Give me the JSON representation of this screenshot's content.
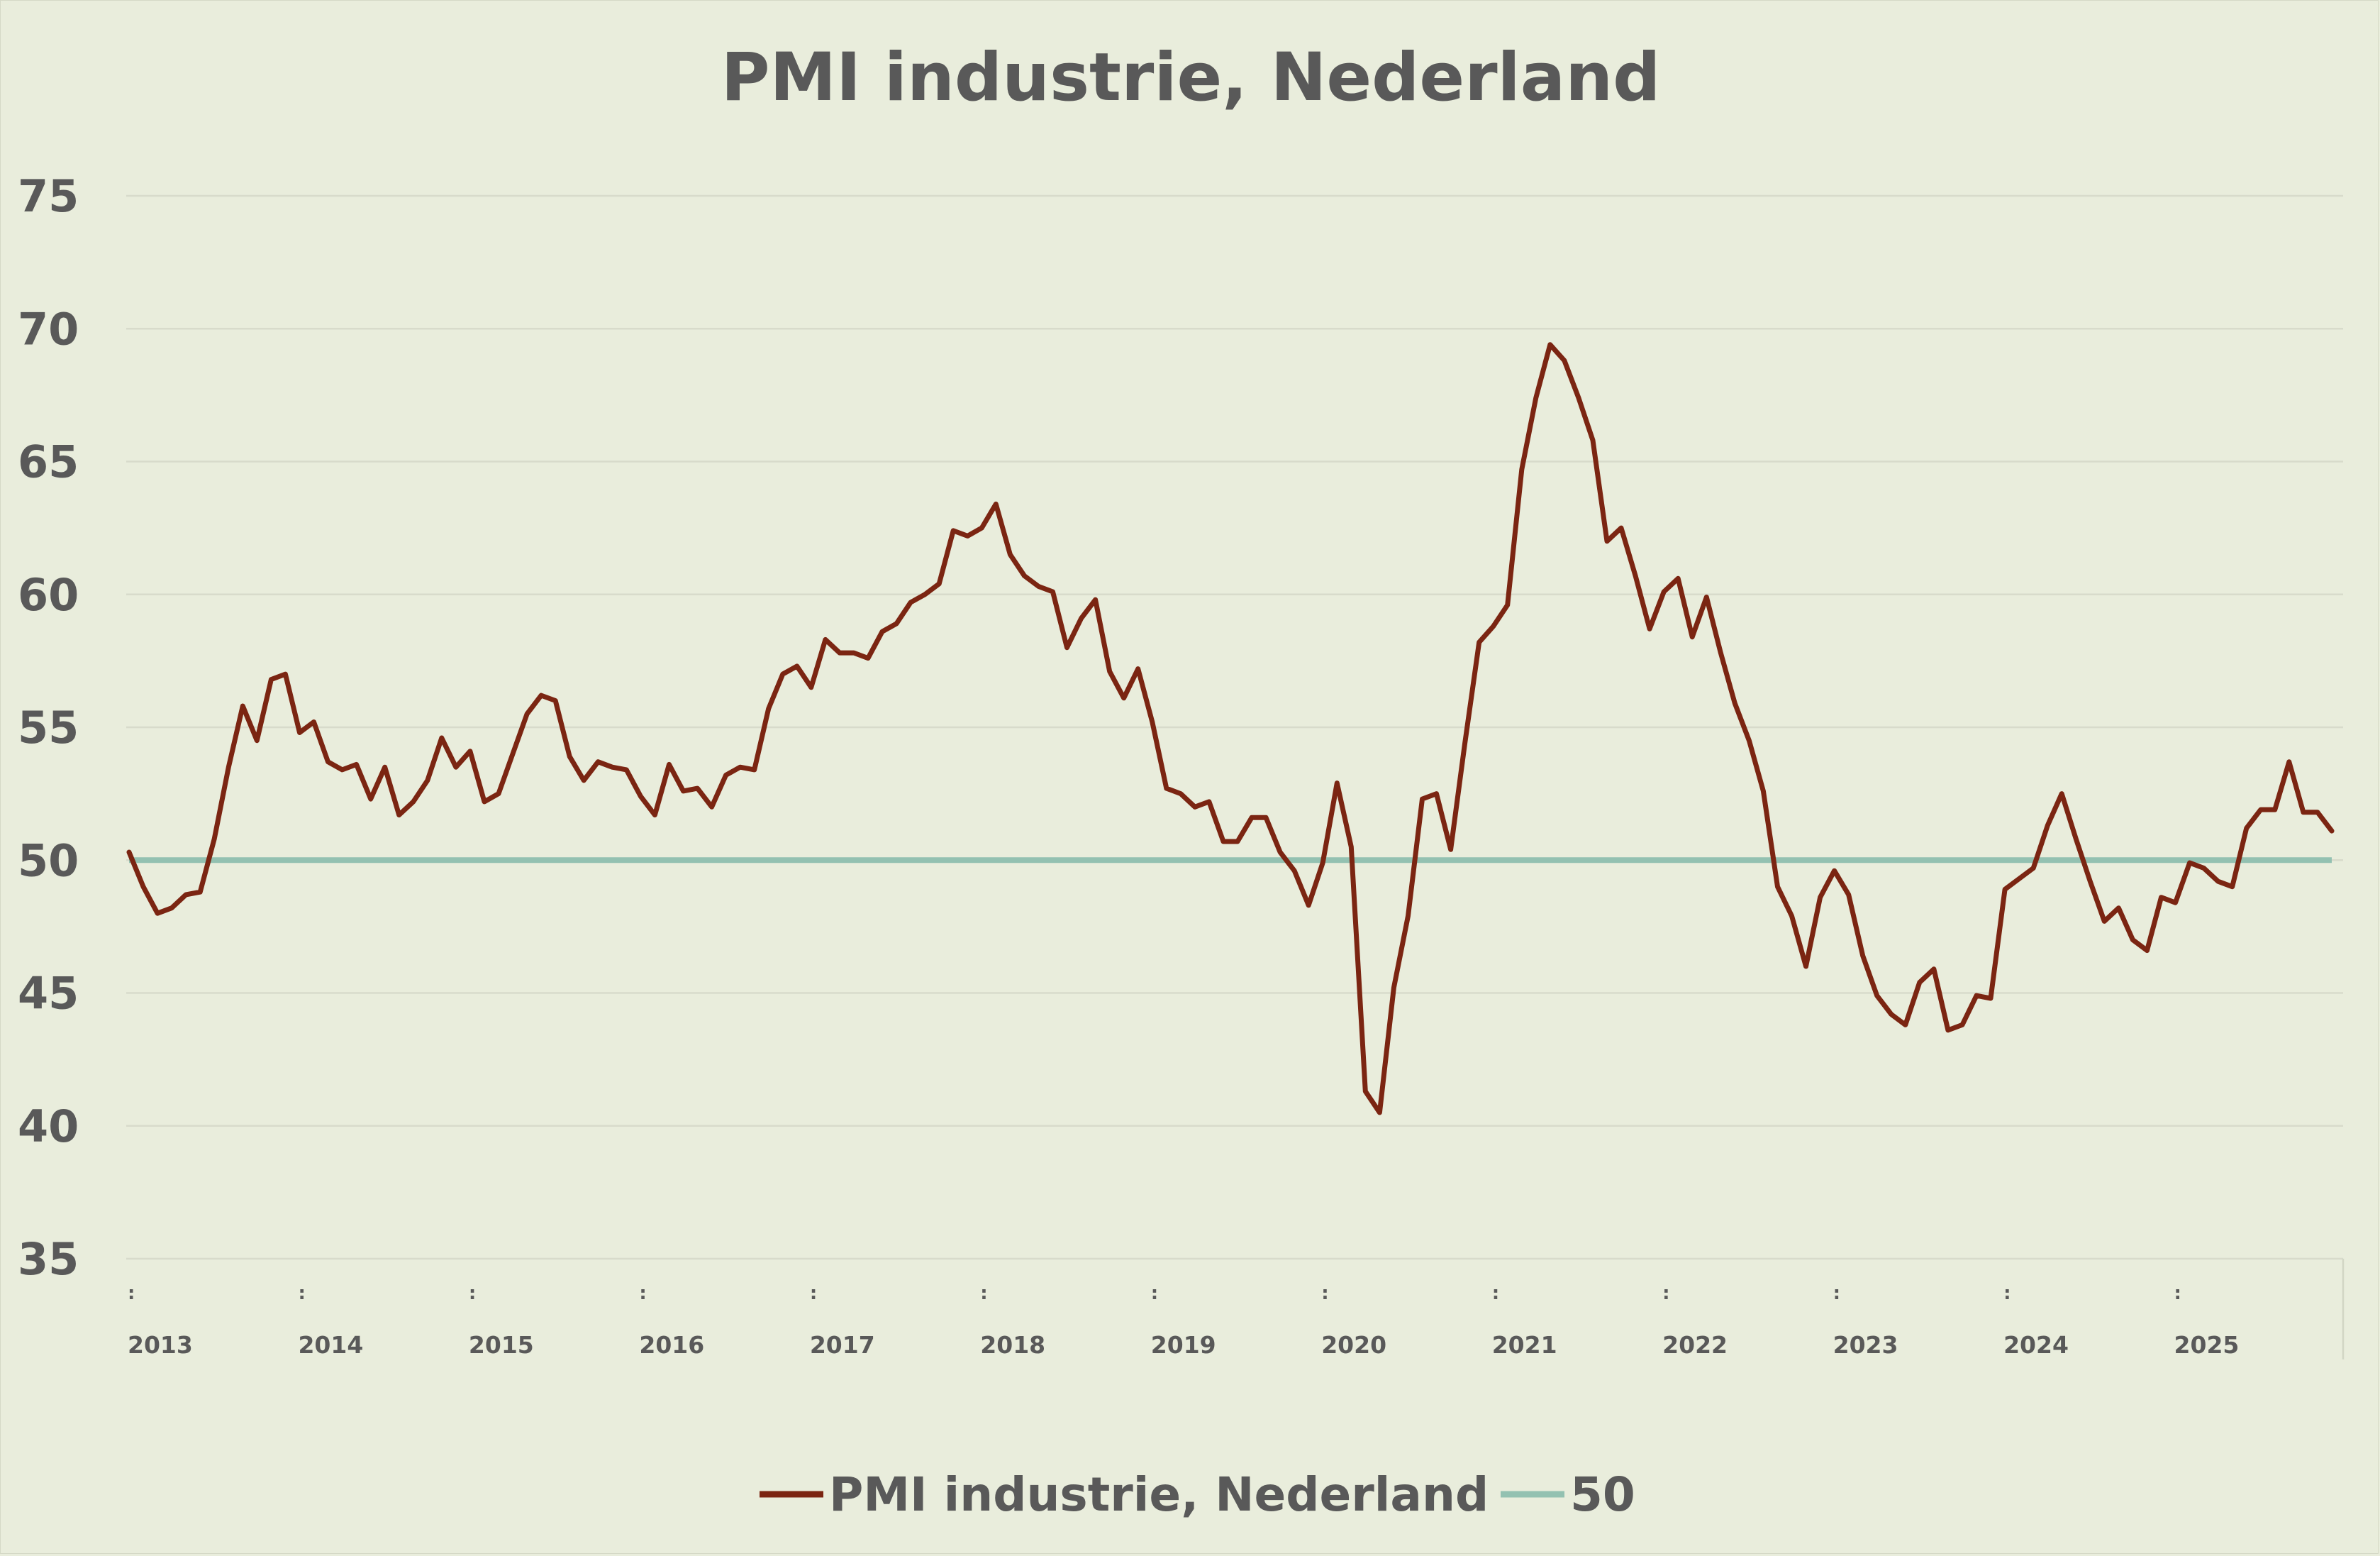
{
  "chart_data": {
    "type": "line",
    "title": "PMI industrie, Nederland",
    "xlabel": "",
    "ylabel": "",
    "ylim": [
      35,
      75
    ],
    "yticks": [
      "75",
      "70",
      "65",
      "60",
      "55",
      "50",
      "45",
      "40",
      "35"
    ],
    "x_tick_labels": [
      "2013",
      "2014",
      "2015",
      "2016",
      "2017",
      "2018",
      "2019",
      "2020",
      "2021",
      "2022",
      "2023",
      "2024",
      "2025"
    ],
    "x_tick_marker": ":",
    "grid": true,
    "legend_position": "bottom",
    "start_period": "2013-01",
    "frequency": "monthly",
    "series": [
      {
        "name": "PMI industrie, Nederland",
        "color": "#7b2512",
        "values": [
          50.3,
          49.0,
          48.0,
          48.2,
          48.7,
          48.8,
          50.8,
          53.5,
          55.8,
          54.5,
          56.8,
          57.0,
          54.8,
          55.2,
          53.7,
          53.4,
          53.6,
          52.3,
          53.5,
          51.7,
          52.2,
          53.0,
          54.6,
          53.5,
          54.1,
          52.2,
          52.5,
          54.0,
          55.5,
          56.2,
          56.0,
          53.9,
          53.0,
          53.7,
          53.5,
          53.4,
          52.4,
          51.7,
          53.6,
          52.6,
          52.7,
          52.0,
          53.2,
          53.5,
          53.4,
          55.7,
          57.0,
          57.3,
          56.5,
          58.3,
          57.8,
          57.8,
          57.6,
          58.6,
          58.9,
          59.7,
          60.0,
          60.4,
          62.4,
          62.2,
          62.5,
          63.4,
          61.5,
          60.7,
          60.3,
          60.1,
          58.0,
          59.1,
          59.8,
          57.1,
          56.1,
          57.2,
          55.2,
          52.7,
          52.5,
          52.0,
          52.2,
          50.7,
          50.7,
          51.6,
          51.6,
          50.3,
          49.6,
          48.3,
          49.9,
          52.9,
          50.5,
          41.3,
          40.5,
          45.2,
          47.9,
          52.3,
          52.5,
          50.4,
          54.4,
          58.2,
          58.8,
          59.6,
          64.7,
          67.4,
          69.4,
          68.8,
          67.4,
          65.8,
          62.0,
          62.5,
          60.7,
          58.7,
          60.1,
          60.6,
          58.4,
          59.9,
          57.8,
          55.9,
          54.5,
          52.6,
          49.0,
          47.9,
          46.0,
          48.6,
          49.6,
          48.7,
          46.4,
          44.9,
          44.2,
          43.8,
          45.4,
          45.9,
          43.6,
          43.8,
          44.9,
          44.8,
          48.9,
          49.3,
          49.7,
          51.3,
          52.5,
          50.8,
          49.2,
          47.7,
          48.2,
          47.0,
          46.6,
          48.6,
          48.4,
          49.9,
          49.7,
          49.2,
          49.0,
          51.2,
          51.9,
          51.9,
          53.7,
          51.8,
          51.8,
          51.1
        ]
      },
      {
        "name": "50",
        "color": "#93c1b1",
        "values": [
          50,
          50
        ]
      }
    ]
  }
}
